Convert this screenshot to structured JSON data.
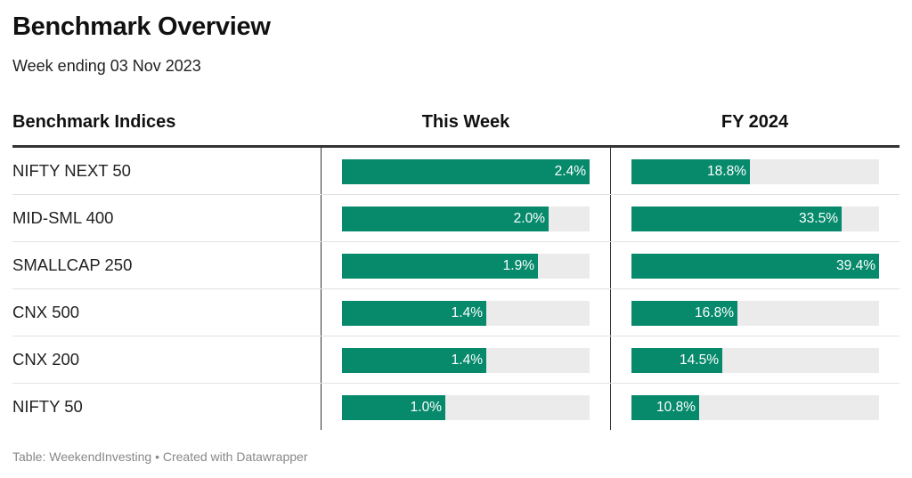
{
  "header": {
    "title": "Benchmark Overview",
    "subtitle": "Week ending 03 Nov 2023"
  },
  "columns": {
    "name": "Benchmark Indices",
    "week": "This Week",
    "fy": "FY 2024"
  },
  "colors": {
    "bar": "#078a6c",
    "track": "#ebebeb",
    "rule": "#333333"
  },
  "footer": {
    "text": "Table: WeekendInvesting • Created with Datawrapper"
  },
  "chart_data": {
    "type": "table",
    "title": "Benchmark Overview",
    "subtitle": "Week ending 03 Nov 2023",
    "columns": [
      "Benchmark Indices",
      "This Week",
      "FY 2024"
    ],
    "rows": [
      {
        "name": "NIFTY NEXT 50",
        "week": 2.4,
        "week_label": "2.4%",
        "fy": 18.8,
        "fy_label": "18.8%"
      },
      {
        "name": "MID-SML 400",
        "week": 2.0,
        "week_label": "2.0%",
        "fy": 33.5,
        "fy_label": "33.5%"
      },
      {
        "name": "SMALLCAP 250",
        "week": 1.9,
        "week_label": "1.9%",
        "fy": 39.4,
        "fy_label": "39.4%"
      },
      {
        "name": "CNX 500",
        "week": 1.4,
        "week_label": "1.4%",
        "fy": 16.8,
        "fy_label": "16.8%"
      },
      {
        "name": "CNX 200",
        "week": 1.4,
        "week_label": "1.4%",
        "fy": 14.5,
        "fy_label": "14.5%"
      },
      {
        "name": "NIFTY 50",
        "week": 1.0,
        "week_label": "1.0%",
        "fy": 10.8,
        "fy_label": "10.8%"
      }
    ],
    "week_max": 2.4,
    "fy_max": 39.4
  }
}
